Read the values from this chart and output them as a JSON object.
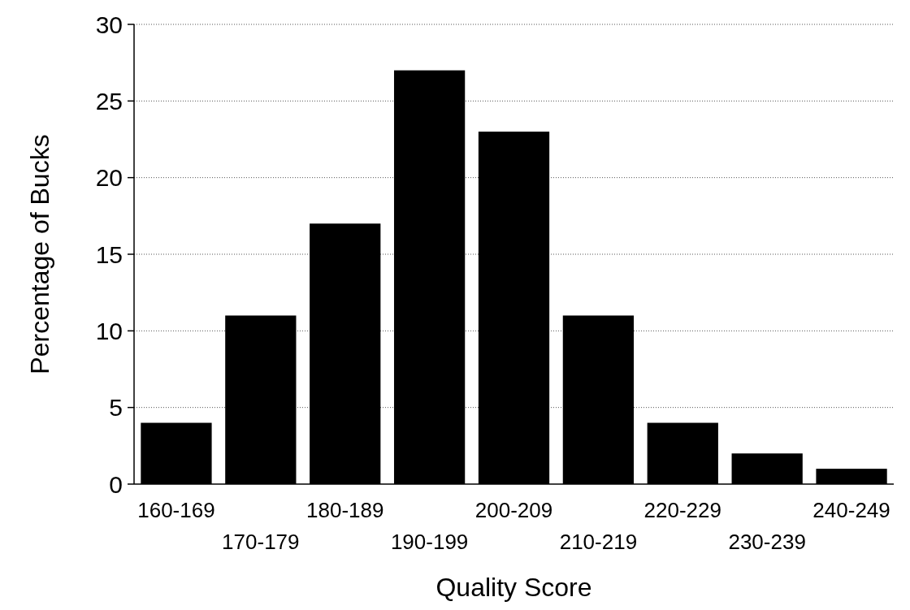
{
  "chart_data": {
    "type": "bar",
    "xlabel": "Quality Score",
    "ylabel": "Percentage of Bucks",
    "categories": [
      "160-169",
      "170-179",
      "180-189",
      "190-199",
      "200-209",
      "210-219",
      "220-229",
      "230-239",
      "240-249"
    ],
    "values": [
      4,
      11,
      17,
      27,
      23,
      11,
      4,
      2,
      1
    ],
    "color": "#000000",
    "ylim": [
      0,
      30
    ],
    "yticks": [
      0,
      5,
      10,
      15,
      20,
      25,
      30
    ],
    "grid": "y"
  }
}
